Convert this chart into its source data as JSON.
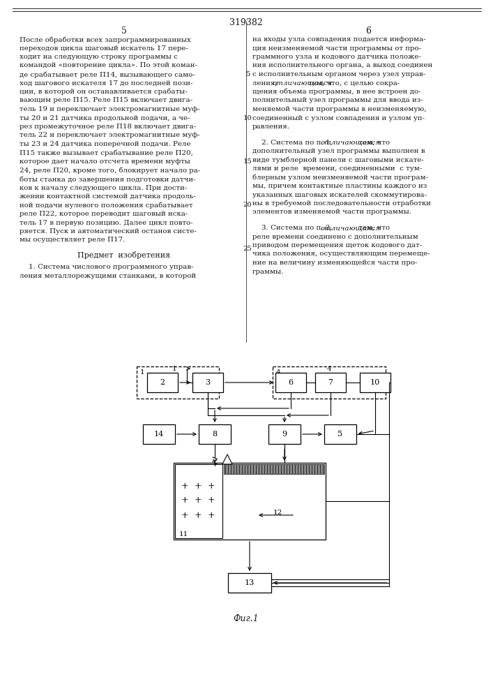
{
  "page_bg": "#ffffff",
  "text_color": "#1a1a1a",
  "title_number": "319382",
  "col_numbers": [
    "5",
    "6"
  ],
  "left_text": [
    "После обработки всех запрограммированных",
    "переходов цикла шаговый искатель 17 пере-",
    "ходит на следующую строку программы с",
    "командой «повторение цикла». По этой коман-",
    "де срабатывает реле П14, вызывающего само-",
    "ход шагового искателя 17 до последней пози-",
    "ции, в которой он останавливается срабаты-",
    "вающим реле П15. Реле П15 включает двига-",
    "тель 19 и переключает электромагнитные муф-",
    "ты 20 и 21 датчика продольной подачи, а че-",
    "рез промежуточное реле П18 включает двига-",
    "тель 22 и переключает электромагнитные муф-",
    "ты 23 и 24 датчика поперечной подачи. Реле",
    "П15 также вызывает срабатывание реле П20,",
    "которое дает начало отсчета времени муфты",
    "24, реле П20, кроме того, блокирует начало ра-",
    "боты станка до завершения подготовки датчи-",
    "ков к началу следующего цикла. При дости-",
    "жении контактной системой датчика продоль-",
    "ной подачи нулевого положения срабатывает",
    "реле П22, которое переводит шаговый иска-",
    "тель 17 в первую позицию. Далее цикл повто-",
    "ряется. Пуск и автоматический останов систе-",
    "мы осуществляет реле П17."
  ],
  "subject_title": "Предмет  изобретения",
  "claim1_left": [
    "    1. Система числового программного управ-",
    "ления металлорежущими станками, в которой"
  ],
  "right_col_lines": [
    "на входы узла совпадения подается информа-",
    "ция неизменяемой части программы от про-",
    "граммного узла и кодового датчика положе-",
    "ния исполнительного органа, а выход соединен",
    "с исполнительным органом через узел управ-",
    "ления, отличающаяся тем, что, с целью сокра-",
    "щения объема программы, в нее встроен до-",
    "полнительный узел программы для ввода из-",
    "меняемой части программы в неизменяемую,",
    "соединенный с узлом совпадения и узлом уп-",
    "равления."
  ],
  "claim2_lines": [
    "    2. Система по п. 1, отличающаяся  тем, что",
    "дополнительный узел программы выполнен в",
    "виде тумблерной панели с шаговыми искате-",
    "лями и реле  времени, соединенными  с тум-",
    "блерным узлом неизменяемой части програм-",
    "мы, причем контактные пластины каждого из",
    "указанных шаговых искателей скоммутирова-",
    "ны в требуемой последовательности отработки",
    "элементов изменяемой части программы."
  ],
  "claim3_lines": [
    "    3. Система по п. 2, отличающаяся  тем, что",
    "реле времени соединено с дополнительным",
    "приводом перемещения щеток кодового дат-",
    "чика положения, осуществляющим перемеще-",
    "ние на величину изменяющейся части про-",
    "граммы."
  ],
  "line_num_positions": [
    5,
    10,
    15,
    20,
    25
  ],
  "line_num_row_offsets": [
    5,
    10,
    15,
    20,
    25
  ],
  "fig_label": "Фиг.1"
}
